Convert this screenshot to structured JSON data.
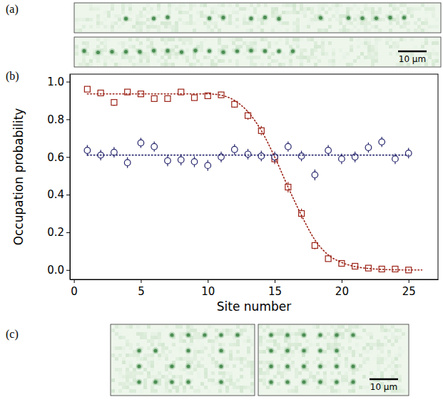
{
  "panel_labels": [
    "(a)",
    "(b)",
    "(c)"
  ],
  "scale_bar_label": "10 μm",
  "chart_data": {
    "type": "scatter",
    "x_label": "Site number",
    "y_label": "Occupation probability",
    "xlim": [
      -0.3,
      27.2
    ],
    "ylim": [
      -0.05,
      1.04
    ],
    "xticks": [
      0,
      5,
      10,
      15,
      20,
      25
    ],
    "yticks": [
      {
        "value": 0,
        "label": "0.0"
      },
      {
        "value": 0.2,
        "label": "0.2"
      },
      {
        "value": 0.4,
        "label": "0.4"
      },
      {
        "value": 0.6,
        "label": "0.6"
      },
      {
        "value": 0.8,
        "label": "0.8"
      },
      {
        "value": 1,
        "label": "1.0"
      }
    ],
    "grid": false,
    "x": [
      1,
      2,
      3,
      4,
      5,
      6,
      7,
      8,
      9,
      10,
      11,
      12,
      13,
      14,
      15,
      16,
      17,
      18,
      19,
      20,
      21,
      22,
      23,
      24,
      25
    ],
    "series": [
      {
        "type": "scatter",
        "color": "#9b2318",
        "marker": "square",
        "values": [
          0.96,
          0.94,
          0.89,
          0.945,
          0.935,
          0.91,
          0.91,
          0.945,
          0.915,
          0.925,
          0.93,
          0.88,
          0.82,
          0.74,
          0.59,
          0.44,
          0.3,
          0.13,
          0.06,
          0.035,
          0.02,
          0.01,
          0.005,
          0.005,
          0.0
        ],
        "errors": [
          0.012,
          0.014,
          0.018,
          0.014,
          0.015,
          0.017,
          0.017,
          0.014,
          0.016,
          0.016,
          0.016,
          0.019,
          0.022,
          0.025,
          0.028,
          0.028,
          0.026,
          0.02,
          0.014,
          0.011,
          0.009,
          0.006,
          0.004,
          0.004,
          0.003
        ]
      },
      {
        "type": "scatter",
        "color": "#27276e",
        "marker": "circle",
        "values": [
          0.635,
          0.61,
          0.625,
          0.57,
          0.675,
          0.655,
          0.58,
          0.585,
          0.575,
          0.555,
          0.6,
          0.64,
          0.615,
          0.605,
          0.6,
          0.655,
          0.605,
          0.505,
          0.635,
          0.59,
          0.6,
          0.65,
          0.68,
          0.59,
          0.62
        ],
        "errors": [
          0.028,
          0.028,
          0.028,
          0.029,
          0.027,
          0.027,
          0.029,
          0.029,
          0.029,
          0.029,
          0.028,
          0.028,
          0.028,
          0.028,
          0.028,
          0.027,
          0.028,
          0.029,
          0.028,
          0.028,
          0.028,
          0.027,
          0.027,
          0.028,
          0.028
        ]
      },
      {
        "type": "line",
        "color": "#9b2318",
        "line_style": "dotted",
        "x": [
          1,
          2,
          3,
          4,
          5,
          6,
          7,
          8,
          9,
          10,
          11,
          12,
          13,
          14,
          15,
          16,
          17,
          18,
          19,
          20,
          21,
          22,
          23,
          24,
          25,
          26
        ],
        "values": [
          0.935,
          0.935,
          0.935,
          0.935,
          0.935,
          0.935,
          0.935,
          0.935,
          0.935,
          0.935,
          0.928,
          0.9,
          0.84,
          0.74,
          0.6,
          0.44,
          0.29,
          0.16,
          0.08,
          0.04,
          0.018,
          0.008,
          0.003,
          0.001,
          0.0,
          0.0
        ]
      },
      {
        "type": "line",
        "color": "#27276e",
        "line_style": "dotted",
        "x": [
          1,
          25
        ],
        "values": [
          0.61,
          0.61
        ]
      }
    ]
  }
}
